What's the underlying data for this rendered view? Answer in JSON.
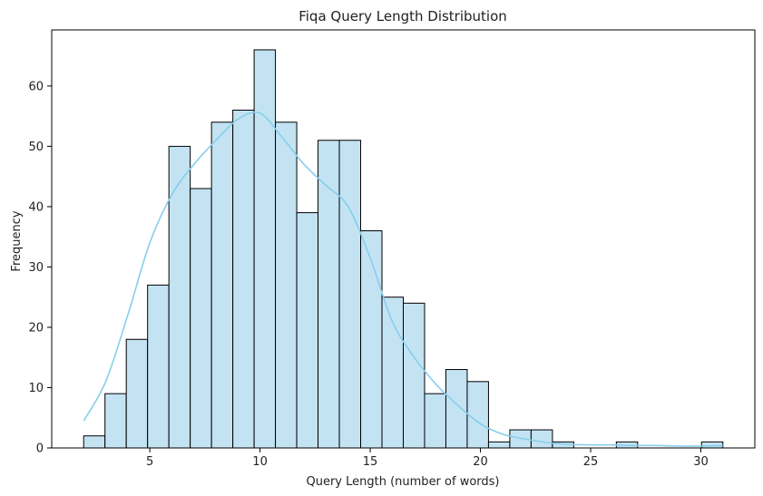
{
  "chart_data": {
    "type": "bar",
    "title": "Fiqa Query Length Distribution",
    "xlabel": "Query Length (number of words)",
    "ylabel": "Frequency",
    "xlim": [
      0.55,
      32.45
    ],
    "ylim": [
      0,
      69.3
    ],
    "x_ticks": [
      5,
      10,
      15,
      20,
      25,
      30
    ],
    "y_ticks": [
      0,
      10,
      20,
      30,
      40,
      50,
      60
    ],
    "grid": false,
    "bin_width": 0.9667,
    "bins": [
      {
        "start": 2.0,
        "end": 2.9667,
        "count": 2
      },
      {
        "start": 2.9667,
        "end": 3.9333,
        "count": 9
      },
      {
        "start": 3.9333,
        "end": 4.9,
        "count": 18
      },
      {
        "start": 4.9,
        "end": 5.8667,
        "count": 27
      },
      {
        "start": 5.8667,
        "end": 6.8333,
        "count": 50
      },
      {
        "start": 6.8333,
        "end": 7.8,
        "count": 43
      },
      {
        "start": 7.8,
        "end": 8.7667,
        "count": 54
      },
      {
        "start": 8.7667,
        "end": 9.7333,
        "count": 56
      },
      {
        "start": 9.7333,
        "end": 10.7,
        "count": 66
      },
      {
        "start": 10.7,
        "end": 11.6667,
        "count": 54
      },
      {
        "start": 11.6667,
        "end": 12.6333,
        "count": 39
      },
      {
        "start": 12.6333,
        "end": 13.6,
        "count": 51
      },
      {
        "start": 13.6,
        "end": 14.5667,
        "count": 51
      },
      {
        "start": 14.5667,
        "end": 15.5333,
        "count": 36
      },
      {
        "start": 15.5333,
        "end": 16.5,
        "count": 25
      },
      {
        "start": 16.5,
        "end": 17.4667,
        "count": 24
      },
      {
        "start": 17.4667,
        "end": 18.4333,
        "count": 9
      },
      {
        "start": 18.4333,
        "end": 19.4,
        "count": 13
      },
      {
        "start": 19.4,
        "end": 20.3667,
        "count": 11
      },
      {
        "start": 20.3667,
        "end": 21.3333,
        "count": 1
      },
      {
        "start": 21.3333,
        "end": 22.3,
        "count": 3
      },
      {
        "start": 22.3,
        "end": 23.2667,
        "count": 3
      },
      {
        "start": 23.2667,
        "end": 24.2333,
        "count": 1
      },
      {
        "start": 24.2333,
        "end": 25.2,
        "count": 0
      },
      {
        "start": 25.2,
        "end": 26.1667,
        "count": 0
      },
      {
        "start": 26.1667,
        "end": 27.1333,
        "count": 1
      },
      {
        "start": 27.1333,
        "end": 28.1,
        "count": 0
      },
      {
        "start": 28.1,
        "end": 29.0667,
        "count": 0
      },
      {
        "start": 29.0667,
        "end": 30.0333,
        "count": 0
      },
      {
        "start": 30.0333,
        "end": 31.0,
        "count": 1
      }
    ],
    "kde": {
      "x": [
        2,
        3,
        4,
        5,
        6,
        7,
        8,
        9,
        10,
        11,
        12,
        13,
        14,
        15,
        16,
        17,
        18,
        19,
        20,
        21,
        22,
        23,
        24,
        25,
        26,
        27,
        28,
        29,
        30,
        31
      ],
      "y": [
        4.5,
        11,
        22,
        34,
        42,
        47,
        51,
        54.5,
        55.5,
        51.5,
        47,
        43.5,
        40,
        31.5,
        21,
        15,
        10.5,
        7,
        4,
        2.3,
        1.5,
        0.9,
        0.6,
        0.5,
        0.5,
        0.4,
        0.4,
        0.3,
        0.3,
        0.4
      ]
    },
    "colors": {
      "bar_fill": "#c3e3f3",
      "bar_edge": "#000000",
      "kde_line": "#87ceeb",
      "axis": "#000000",
      "text": "#222222"
    }
  }
}
